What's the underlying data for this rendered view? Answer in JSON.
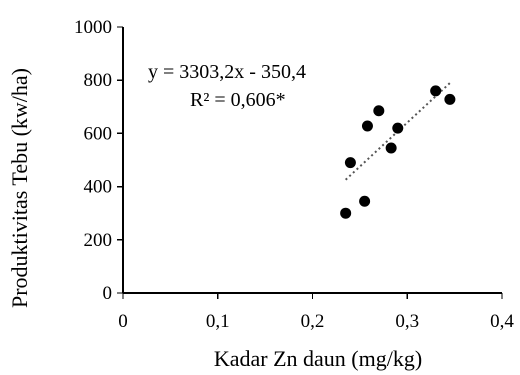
{
  "chart_data": {
    "type": "scatter",
    "title": "",
    "xlabel": "Kadar Zn daun (mg/kg)",
    "ylabel": "Produktivitas Tebu (kw/ha)",
    "xlim": [
      0,
      0.4
    ],
    "ylim": [
      0,
      1000
    ],
    "x_ticks": [
      0,
      0.1,
      0.2,
      0.3,
      0.4
    ],
    "x_tick_labels": [
      "0",
      "0,1",
      "0,2",
      "0,3",
      "0,4"
    ],
    "y_ticks": [
      0,
      200,
      400,
      600,
      800,
      1000
    ],
    "y_tick_labels": [
      "0",
      "200",
      "400",
      "600",
      "800",
      "1000"
    ],
    "grid": false,
    "legend": "none",
    "series": [
      {
        "points": [
          {
            "x": 0.235,
            "y": 300
          },
          {
            "x": 0.24,
            "y": 490
          },
          {
            "x": 0.255,
            "y": 345
          },
          {
            "x": 0.258,
            "y": 628
          },
          {
            "x": 0.27,
            "y": 685
          },
          {
            "x": 0.283,
            "y": 545
          },
          {
            "x": 0.29,
            "y": 620
          },
          {
            "x": 0.33,
            "y": 760
          },
          {
            "x": 0.345,
            "y": 728
          }
        ],
        "color": "#000000"
      }
    ],
    "trendline": {
      "type": "linear",
      "slope": 3303.2,
      "intercept": -350.4,
      "x_range": [
        0.235,
        0.345
      ],
      "style": "dotted",
      "color": "#555555"
    },
    "annotations": {
      "equation": "y = 3303,2x  - 350,4",
      "r2": "R² = 0,606*"
    }
  }
}
